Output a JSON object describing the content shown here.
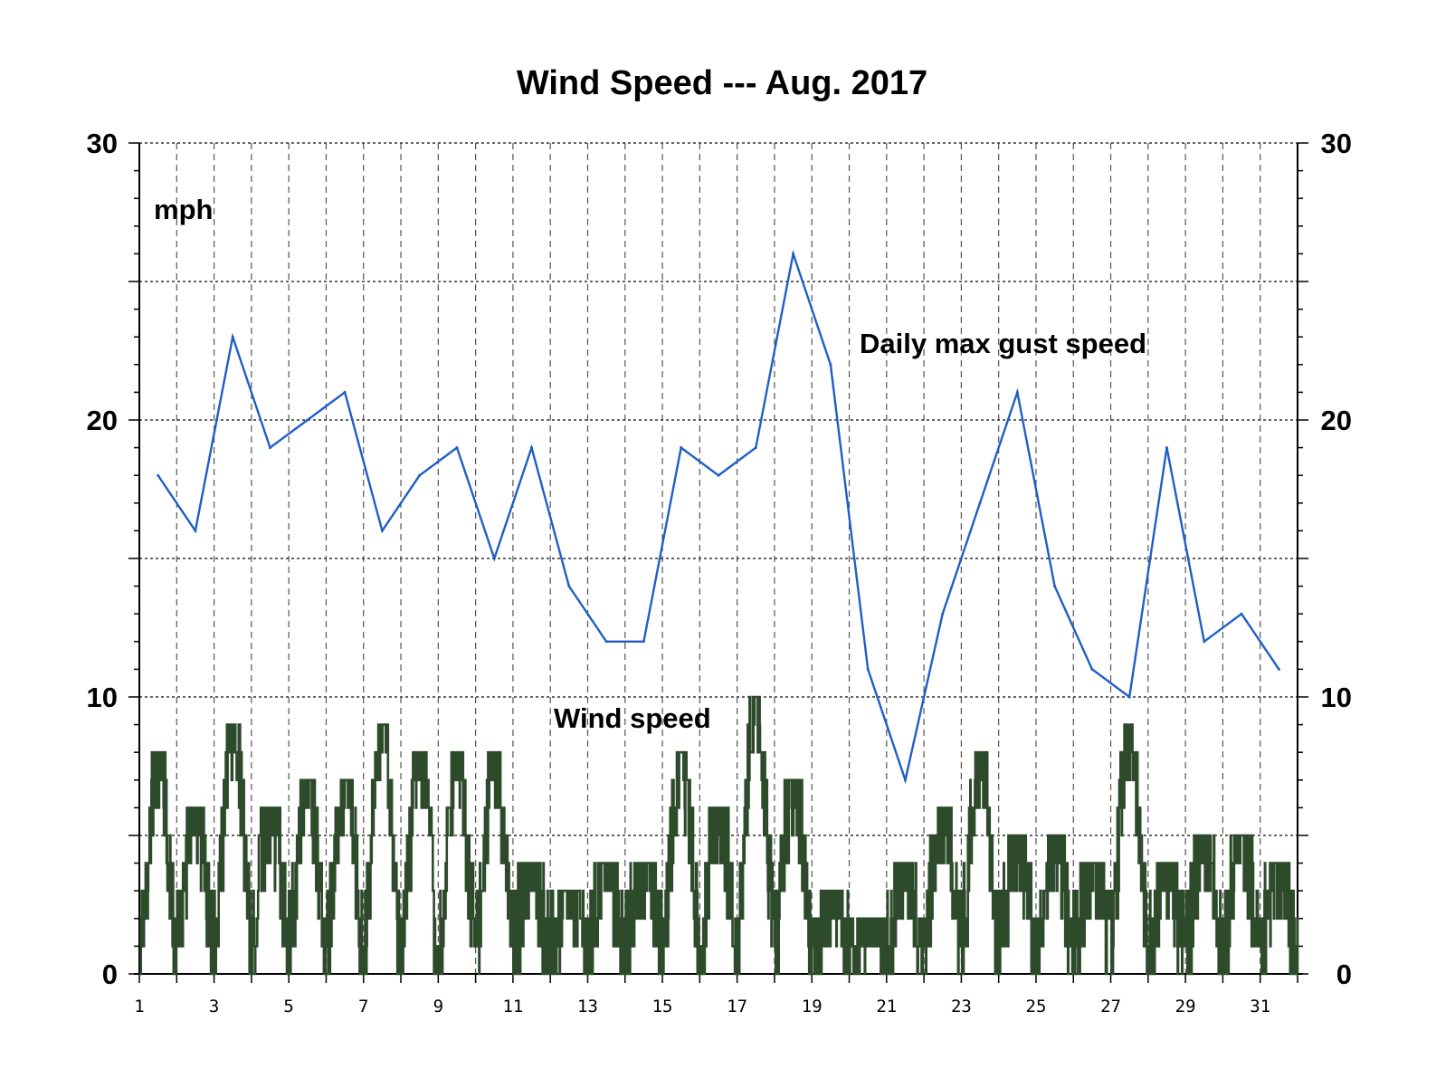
{
  "chart_data": {
    "type": "line",
    "title": "Wind Speed --- Aug. 2017",
    "unit_label": "mph",
    "ylim": [
      0,
      30
    ],
    "xlim": [
      1,
      32
    ],
    "y_tick_labels": [
      "0",
      "10",
      "20",
      "30"
    ],
    "y_tick_values": [
      0,
      10,
      20,
      30
    ],
    "x_tick_labels": [
      "1",
      "3",
      "5",
      "7",
      "9",
      "11",
      "13",
      "15",
      "17",
      "19",
      "21",
      "23",
      "25",
      "27",
      "29",
      "31"
    ],
    "grid": true,
    "annotations": {
      "gust_label": "Daily max gust speed",
      "wind_label": "Wind speed"
    },
    "series": [
      {
        "name": "Daily max gust speed",
        "color": "#1f5fc4",
        "x": [
          1.5,
          2.5,
          3.5,
          4.5,
          5.5,
          6.5,
          7.5,
          8.5,
          9.5,
          10.5,
          11.5,
          12.5,
          13.5,
          14.5,
          15.5,
          16.5,
          17.5,
          18.5,
          19.5,
          20.5,
          21.5,
          22.5,
          23.5,
          24.5,
          25.5,
          26.5,
          27.5,
          28.5,
          29.5,
          30.5,
          31.5
        ],
        "values": [
          18,
          16,
          23,
          19,
          20,
          21,
          16,
          18,
          19,
          15,
          19,
          14,
          12,
          12,
          19,
          18,
          19,
          26,
          22,
          11,
          7,
          13,
          17,
          21,
          14,
          11,
          10,
          19,
          12,
          13,
          11
        ]
      },
      {
        "name": "Wind speed",
        "color": "#2d4a2b",
        "x_start": 1,
        "x_end": 32,
        "daily_peaks": [
          8,
          6,
          9,
          6,
          7,
          7,
          9,
          8,
          8,
          8,
          4,
          3,
          4,
          4,
          8,
          6,
          10,
          7,
          3,
          2,
          4,
          6,
          8,
          5,
          5,
          4,
          9,
          4,
          5,
          5,
          4
        ]
      }
    ]
  }
}
